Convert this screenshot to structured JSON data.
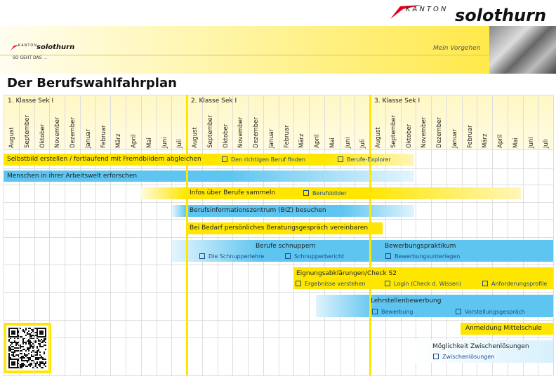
{
  "header": {
    "logo_kanton": "KANTON",
    "logo_name": "solothurn",
    "small_logo_kanton": "KANTON",
    "small_logo_name": "solothurn",
    "slogan": "SO GEHT DAS ...",
    "nav": "Mein Vorgehen"
  },
  "title": "Der Berufswahlfahrplan",
  "years": [
    "1. Klasse Sek I",
    "2. Klasse Sek I",
    "3. Klasse Sek I"
  ],
  "months": [
    "August",
    "September",
    "Oktober",
    "November",
    "Dezember",
    "Januar",
    "Februar",
    "März",
    "April",
    "Mai",
    "Juni",
    "Juli"
  ],
  "items": [
    {
      "label": "Selbstbild erstellen / fortlaufend mit Fremdbildern abgleichen",
      "links": [
        "Den richtigen Beruf finden",
        "Berufe-Explorer"
      ]
    },
    {
      "label": "Menschen in ihrer Arbeitswelt erforschen",
      "links": []
    },
    {
      "label": "Infos über Berufe sammeln",
      "links": [
        "Berufsbilder"
      ]
    },
    {
      "label": "Berufsinformationszentrum (BIZ) besuchen",
      "links": []
    },
    {
      "label": "Bei Bedarf persönliches Beratungsgespräch vereinbaren",
      "links": []
    },
    {
      "label": "Berufe schnuppern",
      "links": [
        "Die Schnupperlehre",
        "Schnupperbericht"
      ]
    },
    {
      "label": "Bewerbungspraktikum",
      "links": [
        "Bewerbungsunterlagen"
      ]
    },
    {
      "label": "Eignungsabklärungen/Check S2",
      "links": [
        "Ergebnisse verstehen",
        "Login (Check d. Wissen)",
        "Anforderungsprofile"
      ]
    },
    {
      "label": "Lehrstellenbewerbung",
      "links": [
        "Bewerbung",
        "Vorstellungsgespräch"
      ]
    },
    {
      "label": "Anmeldung Mittelschule",
      "links": []
    },
    {
      "label": "Möglichkeit Zwischenlösungen",
      "links": [
        "Zwischenlösungen"
      ]
    }
  ]
}
